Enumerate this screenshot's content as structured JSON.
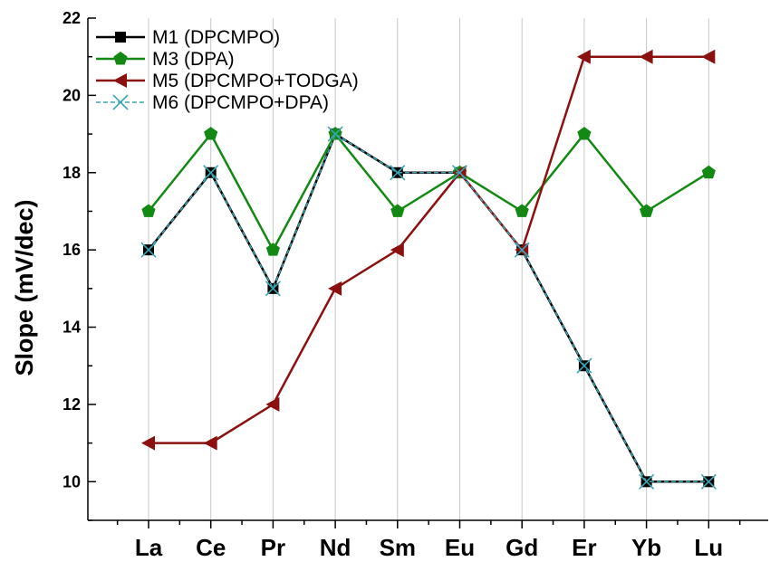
{
  "chart_data": {
    "type": "line",
    "title": "",
    "xlabel": "",
    "ylabel": "Slope (mV/dec)",
    "categories": [
      "La",
      "Ce",
      "Pr",
      "Nd",
      "Sm",
      "Eu",
      "Gd",
      "Er",
      "Yb",
      "Lu"
    ],
    "ylim": [
      9,
      22
    ],
    "yticks": [
      10,
      12,
      14,
      16,
      18,
      20,
      22
    ],
    "grid": "vertical at categories",
    "legend_position": "top-left",
    "series": [
      {
        "name": "M1 (DPCMPO)",
        "color": "#000000",
        "marker": "square",
        "line": "solid",
        "values": [
          16,
          18,
          15,
          19,
          18,
          18,
          16,
          13,
          10,
          10
        ]
      },
      {
        "name": "M3 (DPA)",
        "color": "#148814",
        "marker": "pentagon",
        "line": "solid",
        "values": [
          17,
          19,
          16,
          19,
          17,
          18,
          17,
          19,
          17,
          18
        ]
      },
      {
        "name": "M5 (DPCMPO+TODGA)",
        "color": "#8b1010",
        "marker": "left-triangle",
        "line": "solid",
        "values": [
          11,
          11,
          12,
          15,
          16,
          18,
          16,
          21,
          21,
          21
        ]
      },
      {
        "name": "M6 (DPCMPO+DPA)",
        "color": "#3aa6b3",
        "marker": "x",
        "line": "dashed",
        "values": [
          16,
          18,
          15,
          19,
          18,
          18,
          16,
          13,
          10,
          10
        ]
      }
    ]
  }
}
